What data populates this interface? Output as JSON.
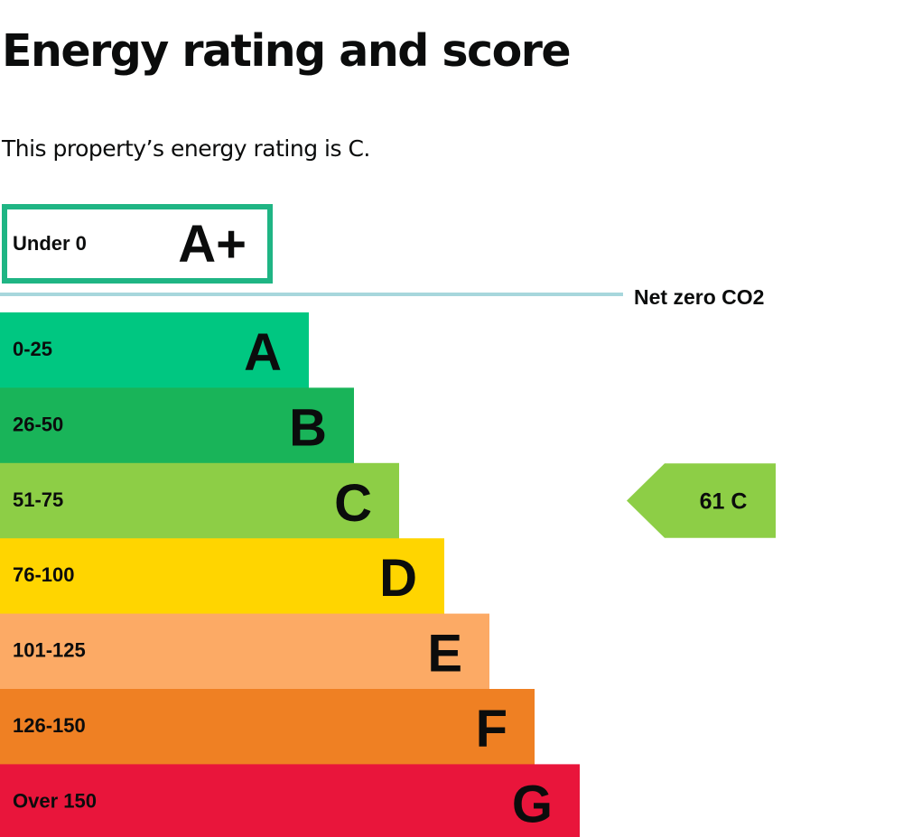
{
  "page": {
    "title": "Energy rating and score",
    "summary": "This property’s energy rating is C."
  },
  "chart_data": {
    "type": "bar",
    "categories": [
      "A+",
      "A",
      "B",
      "C",
      "D",
      "E",
      "F",
      "G"
    ],
    "score_ranges": [
      "Under 0",
      "0-25",
      "26-50",
      "51-75",
      "76-100",
      "101-125",
      "126-150",
      "Over 150"
    ],
    "colors": [
      "#1fb584",
      "#00c781",
      "#19b459",
      "#8dce46",
      "#ffd500",
      "#fcaa65",
      "#ef8023",
      "#e9153b"
    ],
    "threshold_label": "Net zero CO2",
    "threshold_color": "#a7d7dc",
    "current": {
      "score": 61,
      "rating": "C",
      "color": "#8dce46"
    }
  }
}
